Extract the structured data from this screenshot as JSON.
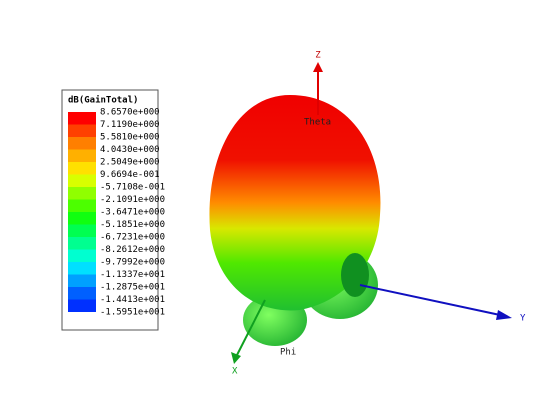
{
  "legend": {
    "title": "dB(GainTotal)",
    "levels": [
      {
        "label": "8.6570e+000",
        "color": "#ff0000"
      },
      {
        "label": "7.1190e+000",
        "color": "#ff4000"
      },
      {
        "label": "5.5810e+000",
        "color": "#ff7f00"
      },
      {
        "label": "4.0430e+000",
        "color": "#ffb000"
      },
      {
        "label": "2.5049e+000",
        "color": "#ffe000"
      },
      {
        "label": "9.6694e-001",
        "color": "#d8ff00"
      },
      {
        "label": "-5.7108e-001",
        "color": "#90ff00"
      },
      {
        "label": "-2.1091e+000",
        "color": "#4cff00"
      },
      {
        "label": "-3.6471e+000",
        "color": "#10ff10"
      },
      {
        "label": "-5.1851e+000",
        "color": "#00ff50"
      },
      {
        "label": "-6.7231e+000",
        "color": "#00ff90"
      },
      {
        "label": "-8.2612e+000",
        "color": "#00ffd0"
      },
      {
        "label": "-9.7992e+000",
        "color": "#00e0ff"
      },
      {
        "label": "-1.1337e+001",
        "color": "#00a0ff"
      },
      {
        "label": "-1.2875e+001",
        "color": "#0060ff"
      },
      {
        "label": "-1.4413e+001",
        "color": "#0030ff"
      },
      {
        "label": "-1.5951e+001",
        "color": "#0000ff"
      }
    ]
  },
  "axes": {
    "z": "Z",
    "y": "Y",
    "x": "X",
    "theta": "Theta",
    "phi": "Phi"
  }
}
